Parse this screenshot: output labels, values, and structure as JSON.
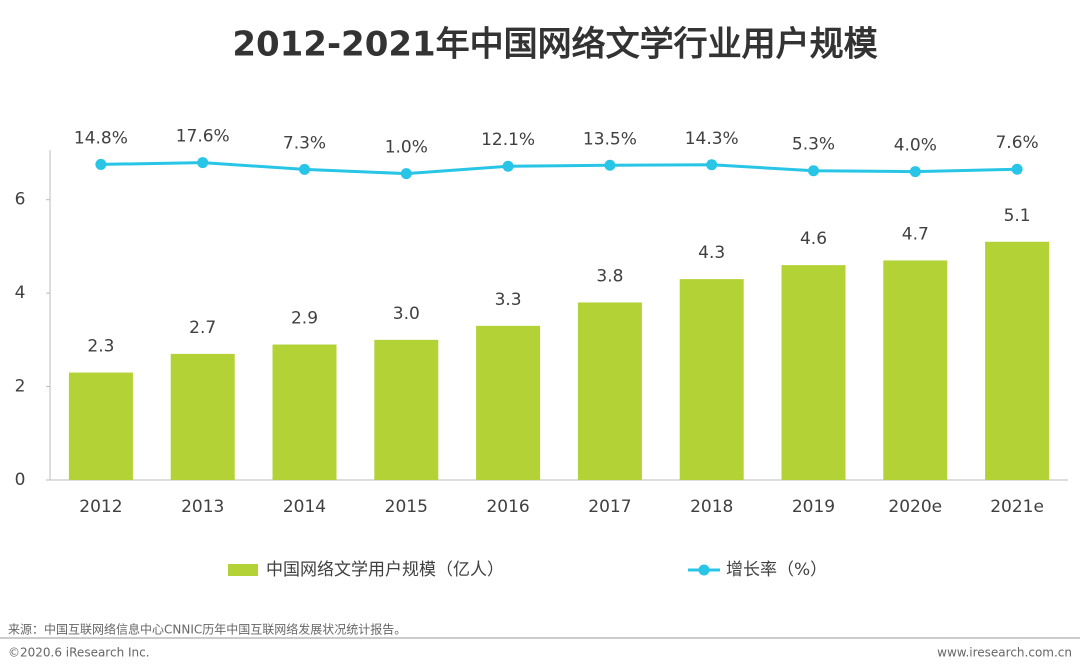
{
  "chart_data": {
    "type": "bar",
    "title": "2012-2021年中国网络文学行业用户规模",
    "categories": [
      "2012",
      "2013",
      "2014",
      "2015",
      "2016",
      "2017",
      "2018",
      "2019",
      "2020e",
      "2021e"
    ],
    "series": [
      {
        "name": "中国网络文学用户规模（亿人）",
        "type": "bar",
        "color": "#b3d235",
        "values": [
          2.3,
          2.7,
          2.9,
          3.0,
          3.3,
          3.8,
          4.3,
          4.6,
          4.7,
          5.1
        ],
        "value_labels": [
          "2.3",
          "2.7",
          "2.9",
          "3.0",
          "3.3",
          "3.8",
          "4.3",
          "4.6",
          "4.7",
          "5.1"
        ]
      },
      {
        "name": "增长率（%）",
        "type": "line",
        "axis": "y2",
        "color": "#29c5e6",
        "values": [
          14.8,
          17.6,
          7.3,
          1.0,
          12.1,
          13.5,
          14.3,
          5.3,
          4.0,
          7.6
        ],
        "value_labels": [
          "14.8%",
          "17.6%",
          "7.3%",
          "1.0%",
          "12.1%",
          "13.5%",
          "14.3%",
          "5.3%",
          "4.0%",
          "7.6%"
        ]
      }
    ],
    "ylim": [
      0,
      7
    ],
    "yticks": [
      0,
      2,
      4,
      6
    ],
    "y2lim": [
      -460,
      32
    ],
    "grid": false,
    "legend": "bottom"
  },
  "footer": {
    "source": "来源：中国互联网络信息中心CNNIC历年中国互联网络发展状况统计报告。",
    "copyright": "©2020.6 iResearch Inc.",
    "website": "www.iresearch.com.cn"
  }
}
